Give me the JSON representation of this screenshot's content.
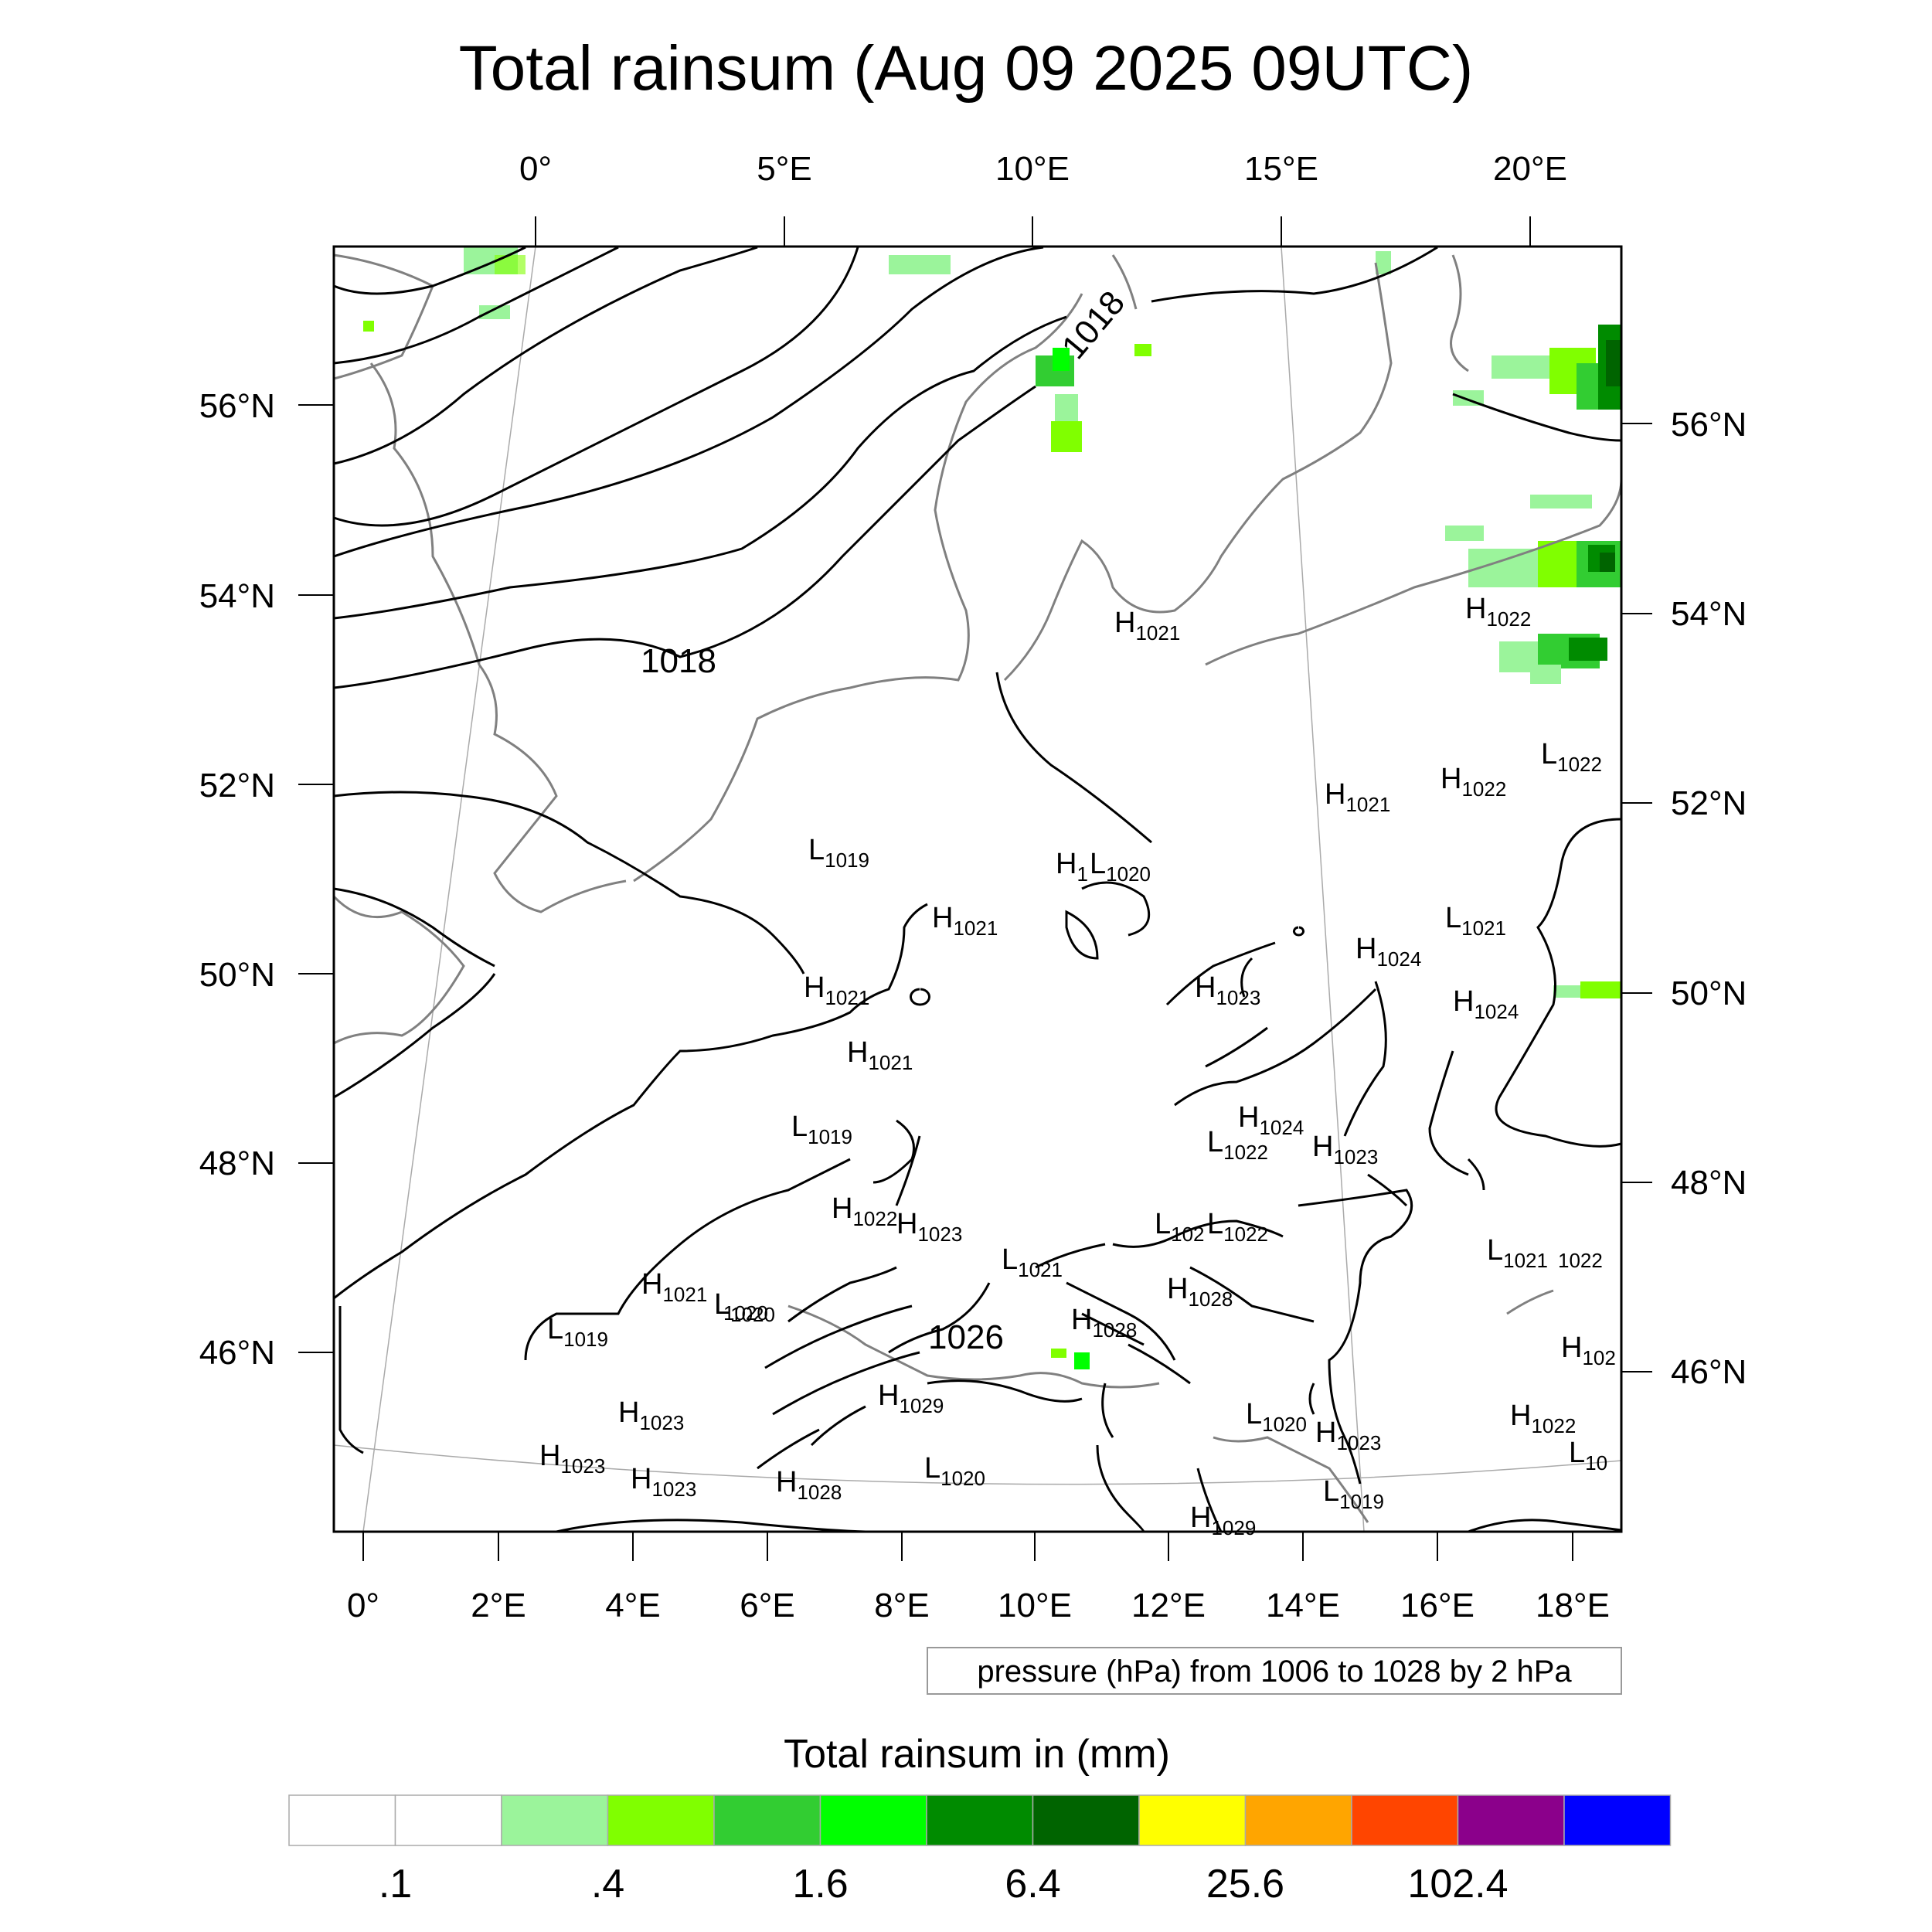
{
  "title": "Total rainsum (Aug 09 2025 09UTC)",
  "top_lon_labels": [
    "0°",
    "5°E",
    "10°E",
    "15°E",
    "20°E"
  ],
  "bottom_lon_labels": [
    "0°",
    "2°E",
    "4°E",
    "6°E",
    "8°E",
    "10°E",
    "12°E",
    "14°E",
    "16°E",
    "18°E"
  ],
  "left_lat_labels": [
    "56°N",
    "54°N",
    "52°N",
    "50°N",
    "48°N",
    "46°N"
  ],
  "right_lat_labels": [
    "56°N",
    "54°N",
    "52°N",
    "50°N",
    "48°N",
    "46°N"
  ],
  "contour_labels": [
    "1018",
    "1018",
    "1026"
  ],
  "pressure_centers": [
    {
      "type": "H",
      "value": "1021"
    },
    {
      "type": "H",
      "value": "1022"
    },
    {
      "type": "L",
      "value": "1022"
    },
    {
      "type": "H",
      "value": "1022"
    },
    {
      "type": "H",
      "value": "1021"
    },
    {
      "type": "L",
      "value": "1019"
    },
    {
      "type": "H",
      "value": "1"
    },
    {
      "type": "L",
      "value": "1020"
    },
    {
      "type": "H",
      "value": "1021"
    },
    {
      "type": "L",
      "value": "1021"
    },
    {
      "type": "H",
      "value": "1024"
    },
    {
      "type": "H",
      "value": "1021"
    },
    {
      "type": "H",
      "value": "1023"
    },
    {
      "type": "H",
      "value": "1024"
    },
    {
      "type": "H",
      "value": "1021"
    },
    {
      "type": "H",
      "value": "1024"
    },
    {
      "type": "L",
      "value": "1019"
    },
    {
      "type": "L",
      "value": "1022"
    },
    {
      "type": "H",
      "value": "1023"
    },
    {
      "type": "H",
      "value": "1022"
    },
    {
      "type": "H",
      "value": "1023"
    },
    {
      "type": "L",
      "value": "102"
    },
    {
      "type": "L",
      "value": "1022"
    },
    {
      "type": "L",
      "value": "1021"
    },
    {
      "type": "L",
      "value": "1021"
    },
    {
      "type": "H",
      "value": "1021"
    },
    {
      "type": "L",
      "value": "1020"
    },
    {
      "type": "H",
      "value": "1028"
    },
    {
      "type": "H",
      "value": "1028"
    },
    {
      "type": "L",
      "value": "1019"
    },
    {
      "type": "H",
      "value": "102"
    },
    {
      "type": "H",
      "value": "1023"
    },
    {
      "type": "H",
      "value": "1029"
    },
    {
      "type": "L",
      "value": "1020"
    },
    {
      "type": "H",
      "value": "1023"
    },
    {
      "type": "H",
      "value": "1022"
    },
    {
      "type": "H",
      "value": "1023"
    },
    {
      "type": "H",
      "value": "1023"
    },
    {
      "type": "H",
      "value": "1028"
    },
    {
      "type": "L",
      "value": "1020"
    },
    {
      "type": "L",
      "value": "10"
    },
    {
      "type": "H",
      "value": "1029"
    },
    {
      "type": "L",
      "value": "1019"
    }
  ],
  "fragment_labels": [
    "1022",
    "1020"
  ],
  "contour_note": "pressure (hPa) from 1006 to 1028 by 2 hPa",
  "colorbar": {
    "title": "Total rainsum in (mm)",
    "colors": [
      "#ffffff",
      "#ffffff",
      "#9bf49b",
      "#80ff00",
      "#32cd32",
      "#00ff00",
      "#008b00",
      "#006400",
      "#ffff00",
      "#ffa500",
      "#ff4500",
      "#8b008b",
      "#0000ff"
    ],
    "labels": [
      ".1",
      ".4",
      "1.6",
      "6.4",
      "25.6",
      "102.4"
    ]
  }
}
